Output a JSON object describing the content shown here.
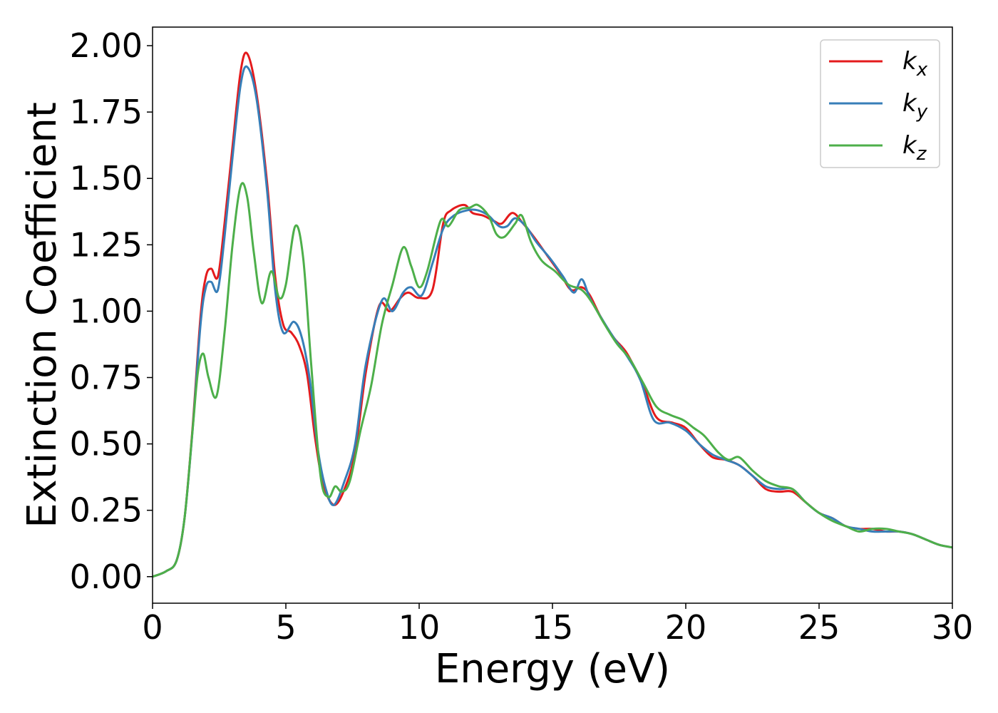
{
  "chart_data": {
    "type": "line",
    "title": "",
    "xlabel": "Energy (eV)",
    "ylabel": "Extinction Coefficient",
    "xlim": [
      0,
      30
    ],
    "ylim": [
      -0.1,
      2.07
    ],
    "xticks": [
      0,
      5,
      10,
      15,
      20,
      25,
      30
    ],
    "xtick_labels": [
      "0",
      "5",
      "10",
      "15",
      "20",
      "25",
      "30"
    ],
    "yticks": [
      0,
      0.25,
      0.5,
      0.75,
      1.0,
      1.25,
      1.5,
      1.75,
      2.0
    ],
    "ytick_labels": [
      "0.00",
      "0.25",
      "0.50",
      "0.75",
      "1.00",
      "1.25",
      "1.50",
      "1.75",
      "2.00"
    ],
    "grid": false,
    "legend_position": "top-right",
    "series": [
      {
        "name": "k",
        "subscript": "x",
        "color": "#e41a1c",
        "x": [
          0,
          0.5,
          0.9,
          1.2,
          1.5,
          1.8,
          2.0,
          2.2,
          2.45,
          2.7,
          3.0,
          3.3,
          3.55,
          3.9,
          4.3,
          4.6,
          4.9,
          5.2,
          5.5,
          5.8,
          6.1,
          6.4,
          6.8,
          7.2,
          7.6,
          8.0,
          8.5,
          8.9,
          9.3,
          9.6,
          10.0,
          10.5,
          10.9,
          11.2,
          11.7,
          12.0,
          12.4,
          12.8,
          13.1,
          13.5,
          13.9,
          14.3,
          14.8,
          15.3,
          15.7,
          16.1,
          16.4,
          16.8,
          17.3,
          17.8,
          18.4,
          18.9,
          19.5,
          20.0,
          20.5,
          21.0,
          21.5,
          22.0,
          22.5,
          23.0,
          23.5,
          24.0,
          24.5,
          25.0,
          25.5,
          26.0,
          26.5,
          27.0,
          27.5,
          28.0,
          28.5,
          29.0,
          29.5,
          30.0
        ],
        "y": [
          0.0,
          0.02,
          0.06,
          0.22,
          0.56,
          0.98,
          1.13,
          1.16,
          1.13,
          1.33,
          1.62,
          1.9,
          1.97,
          1.82,
          1.48,
          1.13,
          0.95,
          0.92,
          0.87,
          0.76,
          0.52,
          0.35,
          0.27,
          0.33,
          0.47,
          0.77,
          1.02,
          1.0,
          1.05,
          1.07,
          1.05,
          1.08,
          1.33,
          1.38,
          1.4,
          1.37,
          1.36,
          1.34,
          1.33,
          1.37,
          1.33,
          1.28,
          1.21,
          1.14,
          1.08,
          1.09,
          1.06,
          0.98,
          0.9,
          0.84,
          0.72,
          0.6,
          0.58,
          0.56,
          0.5,
          0.45,
          0.44,
          0.42,
          0.38,
          0.33,
          0.32,
          0.32,
          0.28,
          0.24,
          0.22,
          0.19,
          0.18,
          0.18,
          0.17,
          0.17,
          0.16,
          0.14,
          0.12,
          0.11
        ]
      },
      {
        "name": "k",
        "subscript": "y",
        "color": "#377eb8",
        "x": [
          0,
          0.5,
          0.9,
          1.2,
          1.5,
          1.8,
          2.0,
          2.2,
          2.45,
          2.7,
          3.0,
          3.3,
          3.55,
          3.9,
          4.3,
          4.6,
          4.9,
          5.3,
          5.6,
          5.9,
          6.2,
          6.5,
          6.8,
          7.2,
          7.6,
          8.0,
          8.6,
          9.0,
          9.4,
          9.7,
          10.1,
          10.5,
          10.9,
          11.3,
          11.8,
          12.2,
          12.6,
          13.0,
          13.3,
          13.6,
          14.0,
          14.4,
          14.9,
          15.4,
          15.8,
          16.1,
          16.4,
          16.8,
          17.3,
          17.8,
          18.3,
          18.8,
          19.4,
          20.0,
          20.5,
          21.0,
          21.5,
          22.0,
          22.5,
          23.0,
          23.5,
          24.0,
          24.5,
          25.0,
          25.5,
          26.0,
          26.5,
          27.0,
          27.5,
          28.0,
          28.5,
          29.0,
          29.5,
          30.0
        ],
        "y": [
          0.0,
          0.02,
          0.06,
          0.22,
          0.55,
          0.95,
          1.09,
          1.11,
          1.08,
          1.28,
          1.58,
          1.85,
          1.92,
          1.8,
          1.45,
          1.08,
          0.92,
          0.96,
          0.9,
          0.74,
          0.48,
          0.33,
          0.27,
          0.36,
          0.5,
          0.8,
          1.04,
          1.0,
          1.07,
          1.09,
          1.06,
          1.18,
          1.31,
          1.36,
          1.38,
          1.38,
          1.36,
          1.32,
          1.32,
          1.35,
          1.32,
          1.26,
          1.2,
          1.13,
          1.07,
          1.12,
          1.05,
          0.98,
          0.9,
          0.83,
          0.74,
          0.59,
          0.58,
          0.55,
          0.5,
          0.46,
          0.44,
          0.42,
          0.38,
          0.34,
          0.33,
          0.33,
          0.28,
          0.24,
          0.22,
          0.19,
          0.18,
          0.17,
          0.17,
          0.17,
          0.16,
          0.14,
          0.12,
          0.11
        ]
      },
      {
        "name": "k",
        "subscript": "z",
        "color": "#4daf4a",
        "x": [
          0,
          0.5,
          0.9,
          1.2,
          1.5,
          1.7,
          1.9,
          2.1,
          2.4,
          2.7,
          3.0,
          3.3,
          3.55,
          3.8,
          4.1,
          4.45,
          4.75,
          5.0,
          5.35,
          5.65,
          5.95,
          6.3,
          6.6,
          6.85,
          7.1,
          7.4,
          7.8,
          8.2,
          8.6,
          9.0,
          9.4,
          9.7,
          10.0,
          10.3,
          10.8,
          11.1,
          11.5,
          11.9,
          12.2,
          12.6,
          12.9,
          13.2,
          13.6,
          13.85,
          14.2,
          14.6,
          15.1,
          15.6,
          16.1,
          16.5,
          16.9,
          17.4,
          17.9,
          18.4,
          18.9,
          19.4,
          19.9,
          20.3,
          20.7,
          21.2,
          21.6,
          22.0,
          22.5,
          23.0,
          23.5,
          24.0,
          24.5,
          25.0,
          25.5,
          26.0,
          26.5,
          27.0,
          27.5,
          28.0,
          28.5,
          29.0,
          29.5,
          30.0
        ],
        "y": [
          0.0,
          0.02,
          0.06,
          0.22,
          0.55,
          0.77,
          0.84,
          0.75,
          0.68,
          0.92,
          1.25,
          1.47,
          1.43,
          1.22,
          1.03,
          1.15,
          1.05,
          1.1,
          1.32,
          1.2,
          0.8,
          0.38,
          0.3,
          0.34,
          0.32,
          0.36,
          0.55,
          0.72,
          0.95,
          1.1,
          1.24,
          1.17,
          1.09,
          1.15,
          1.34,
          1.32,
          1.38,
          1.39,
          1.4,
          1.36,
          1.29,
          1.28,
          1.33,
          1.36,
          1.26,
          1.19,
          1.15,
          1.1,
          1.08,
          1.03,
          0.96,
          0.88,
          0.82,
          0.73,
          0.64,
          0.61,
          0.59,
          0.56,
          0.53,
          0.47,
          0.44,
          0.45,
          0.4,
          0.36,
          0.34,
          0.33,
          0.28,
          0.24,
          0.21,
          0.19,
          0.17,
          0.18,
          0.18,
          0.17,
          0.16,
          0.14,
          0.12,
          0.11
        ]
      }
    ]
  }
}
